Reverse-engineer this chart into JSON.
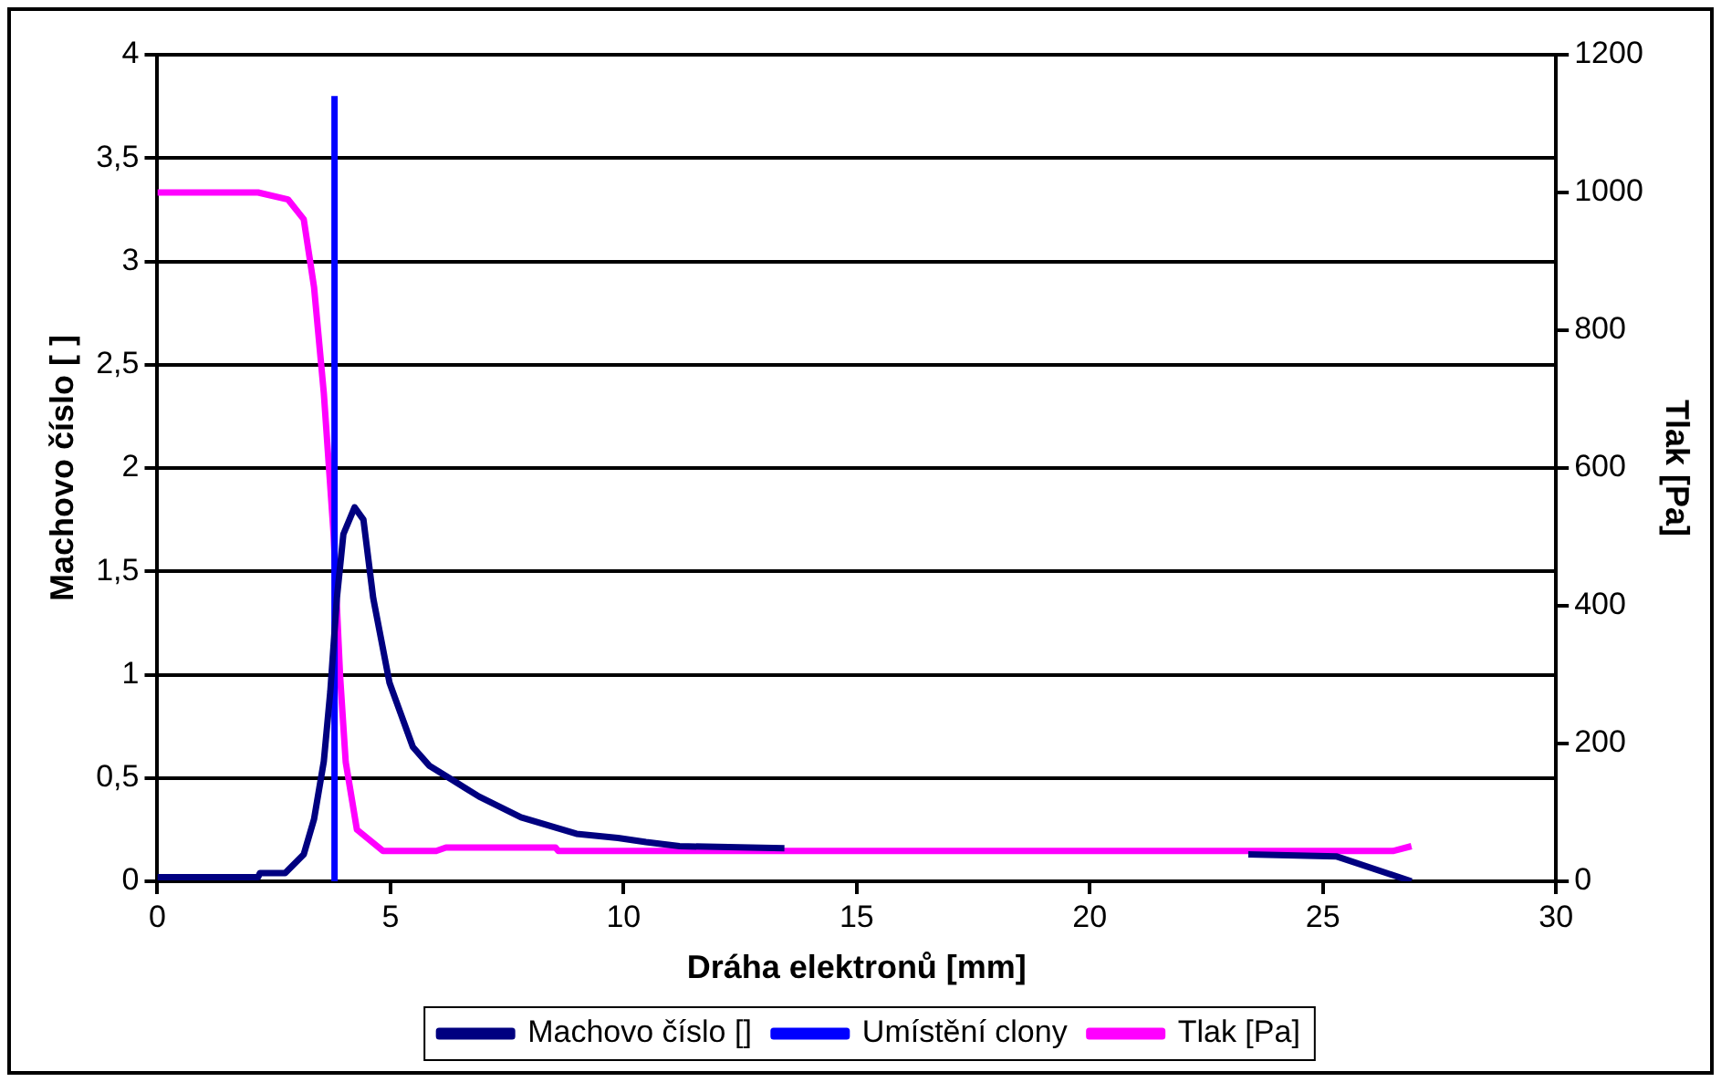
{
  "chart_data": {
    "type": "line",
    "xlabel": "Dráha elektronů [mm]",
    "ylabel": "Machovo číslo [ ]",
    "y2label": "Tlak [Pa]",
    "xlim": [
      0,
      30
    ],
    "xticks": [
      0,
      5,
      10,
      15,
      20,
      25,
      30
    ],
    "ylim": [
      0,
      4
    ],
    "yticks": [
      0,
      {
        "value": 0.5,
        "label": "0,5"
      },
      1,
      {
        "value": 1.5,
        "label": "1,5"
      },
      2,
      {
        "value": 2.5,
        "label": "2,5"
      },
      3,
      {
        "value": 3.5,
        "label": "3,5"
      },
      4
    ],
    "y2lim": [
      0,
      1200
    ],
    "y2ticks": [
      0,
      200,
      400,
      600,
      800,
      1000,
      1200
    ],
    "grid": "y",
    "legend": "bottom",
    "marker": "none",
    "line_style": "solid",
    "series": [
      {
        "name": "Machovo číslo []",
        "color": "#000080",
        "x": [
          0,
          1,
          2.16,
          2.2,
          2.74,
          3.14,
          3.36,
          3.57,
          3.71,
          3.85,
          3.99,
          4.23,
          4.42,
          4.63,
          4.98,
          5.48,
          5.83,
          6.33,
          6.9,
          7.8,
          8.99,
          9.88,
          10.48,
          11.2,
          13.45,
          15,
          20,
          23.4,
          25.3,
          26.9
        ],
        "values": [
          0.02,
          0.02,
          0.02,
          0.04,
          0.04,
          0.13,
          0.3,
          0.58,
          0.92,
          1.37,
          1.68,
          1.81,
          1.75,
          1.37,
          0.96,
          0.65,
          0.56,
          0.49,
          0.41,
          0.31,
          0.23,
          0.21,
          0.19,
          0.17,
          0.16,
          null,
          null,
          0.13,
          0.12,
          0
        ]
      },
      {
        "name": "Umístění clony",
        "color": "#0000ff",
        "x": [
          3.8,
          3.8
        ],
        "values": [
          0,
          3.8
        ]
      },
      {
        "name": "Tlak [Pa]",
        "color": "#ff00ff",
        "axis": "y2",
        "x": [
          0,
          1,
          2.16,
          2.8,
          3.14,
          3.36,
          3.57,
          3.78,
          3.92,
          4.04,
          4.28,
          4.84,
          5.98,
          6.19,
          8.54,
          8.6,
          15,
          20,
          25,
          26.5,
          26.9
        ],
        "values": [
          1000,
          1000,
          1000,
          990,
          961,
          863,
          709,
          504,
          297,
          173,
          75,
          44,
          44,
          49,
          49,
          44,
          44,
          44,
          44,
          44,
          51
        ]
      }
    ]
  }
}
